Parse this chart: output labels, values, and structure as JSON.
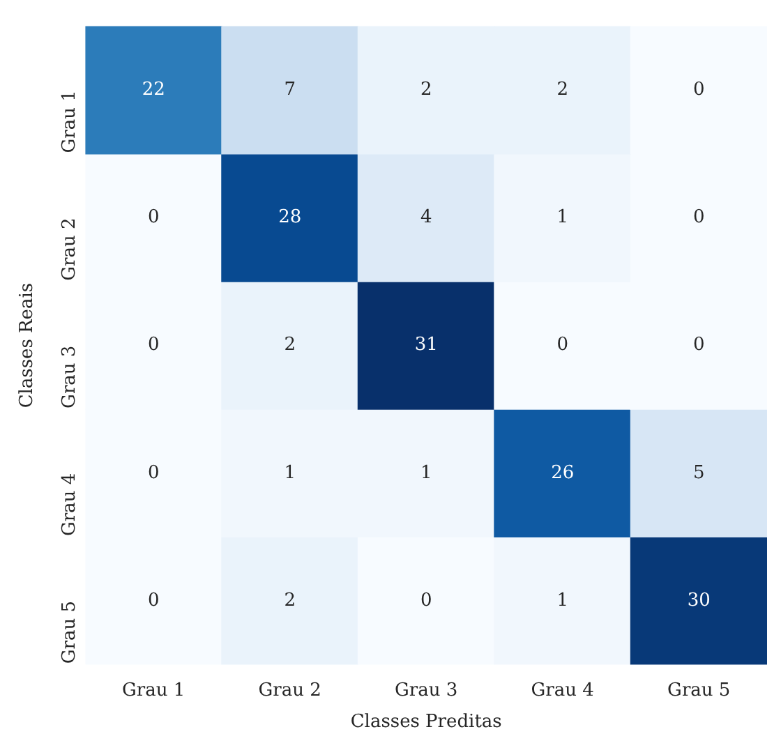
{
  "chart_data": {
    "type": "heatmap",
    "xlabel": "Classes Preditas",
    "ylabel": "Classes Reais",
    "categories": [
      "Grau 1",
      "Grau 2",
      "Grau 3",
      "Grau 4",
      "Grau 5"
    ],
    "y_categories": [
      "Grau 1",
      "Grau 2",
      "Grau 3",
      "Grau 4",
      "Grau 5"
    ],
    "cells": [
      [
        22,
        7,
        2,
        2,
        0
      ],
      [
        0,
        28,
        4,
        1,
        0
      ],
      [
        0,
        2,
        31,
        0,
        0
      ],
      [
        0,
        1,
        1,
        26,
        5
      ],
      [
        0,
        2,
        0,
        1,
        30
      ]
    ],
    "data_labels": true
  }
}
